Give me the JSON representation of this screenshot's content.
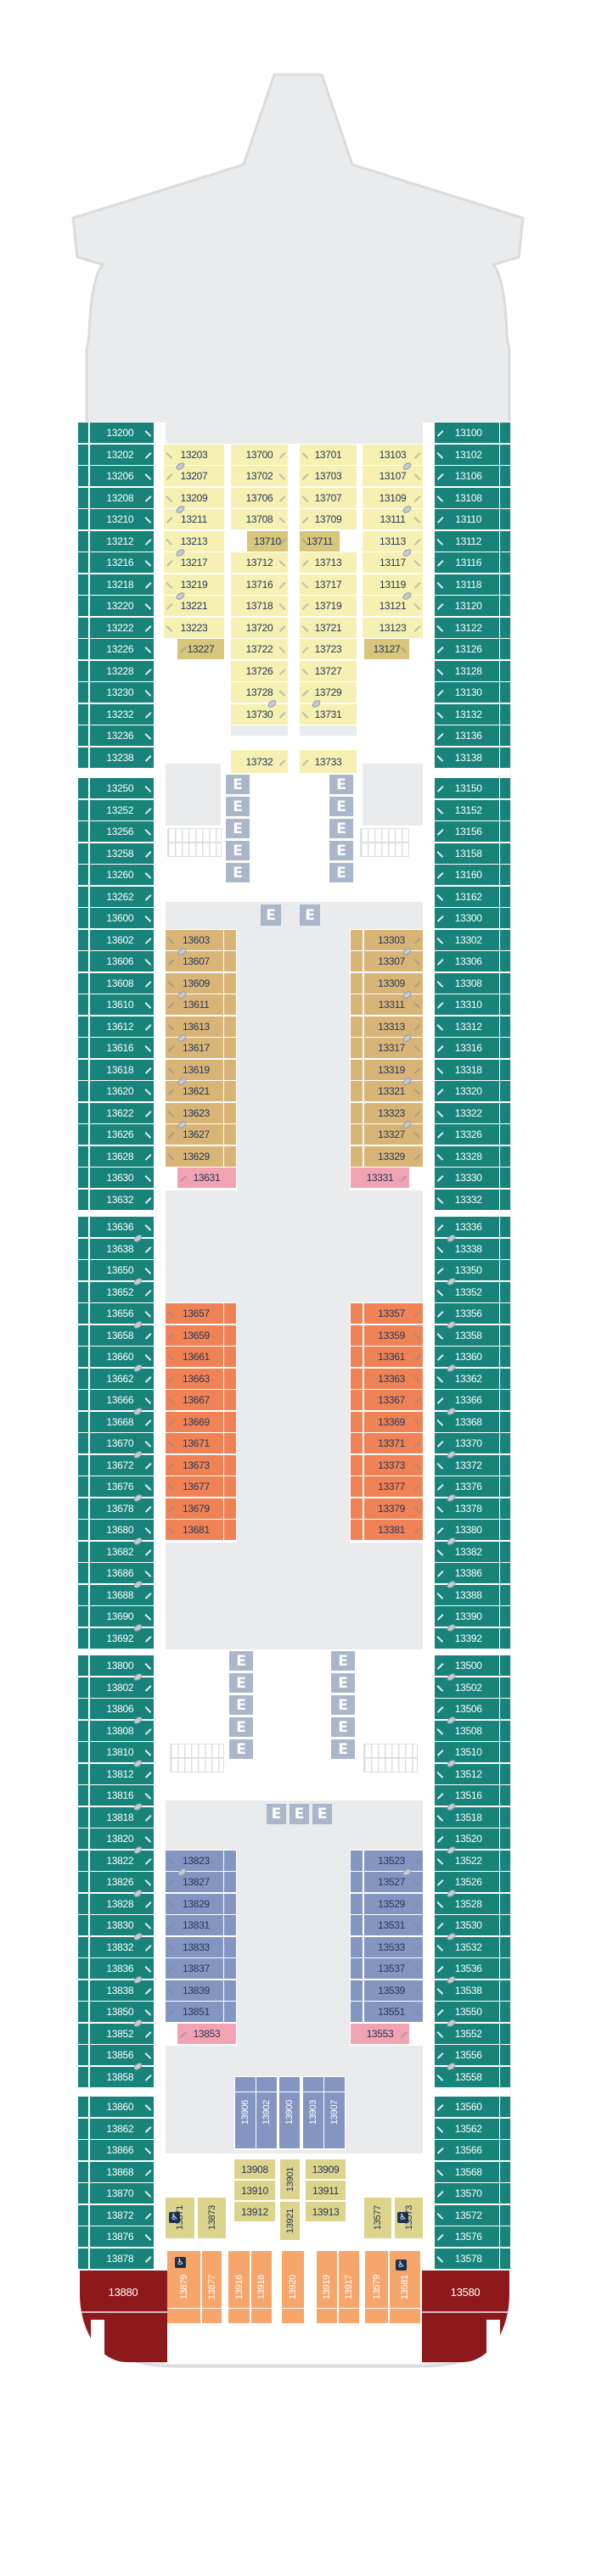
{
  "legend": {
    "elevator_label": "E",
    "accessible_icon": "♿",
    "connecting_rooms_icon": "slashed-oval"
  },
  "colors": {
    "teal": "#17837A",
    "yellow": "#F6F1B3",
    "gold": "#D8C67C",
    "tan": "#D8B577",
    "orange": "#F08356",
    "orange_vertical": "#F6A66B",
    "pink": "#F2A3B3",
    "periwinkle": "#8495C1",
    "khaki": "#DCD48C",
    "suite_red": "#8E191C",
    "elevator": "#AAB7CA",
    "hull": "#E9EBEC",
    "hull_border": "#D9DBDD",
    "number_dark": "#263656"
  },
  "teal_left_sections": [
    [
      "13200",
      "13202",
      "13206",
      "13208",
      "13210",
      "13212",
      "13216",
      "13218",
      "13220",
      "13222",
      "13226",
      "13228",
      "13230",
      "13232",
      "13236",
      "13238"
    ],
    [
      "13250",
      "13252",
      "13256",
      "13258",
      "13260",
      "13262",
      "13600",
      "13602",
      "13606",
      "13608",
      "13610",
      "13612",
      "13616",
      "13618",
      "13620",
      "13622",
      "13626",
      "13628",
      "13630",
      "13632"
    ],
    [
      "13636",
      "13638",
      "13650",
      "13652",
      "13656",
      "13658",
      "13660",
      "13662",
      "13666",
      "13668",
      "13670",
      "13672",
      "13676",
      "13678",
      "13680",
      "13682",
      "13686",
      "13688",
      "13690",
      "13692"
    ],
    [
      "13800",
      "13802",
      "13806",
      "13808",
      "13810",
      "13812",
      "13816",
      "13818",
      "13820",
      "13822",
      "13826",
      "13828",
      "13830",
      "13832",
      "13836",
      "13838",
      "13850",
      "13852",
      "13856",
      "13858"
    ],
    [
      "13860",
      "13862",
      "13866",
      "13868",
      "13870",
      "13872",
      "13876",
      "13878"
    ]
  ],
  "teal_right_sections": [
    [
      "13100",
      "13102",
      "13106",
      "13108",
      "13110",
      "13112",
      "13116",
      "13118",
      "13120",
      "13122",
      "13126",
      "13128",
      "13130",
      "13132",
      "13136",
      "13138"
    ],
    [
      "13150",
      "13152",
      "13156",
      "13158",
      "13160",
      "13162",
      "13300",
      "13302",
      "13306",
      "13308",
      "13310",
      "13312",
      "13316",
      "13318",
      "13320",
      "13322",
      "13326",
      "13328",
      "13330",
      "13332"
    ],
    [
      "13336",
      "13338",
      "13350",
      "13352",
      "13356",
      "13358",
      "13360",
      "13362",
      "13366",
      "13368",
      "13370",
      "13372",
      "13376",
      "13378",
      "13380",
      "13382",
      "13386",
      "13388",
      "13390",
      "13392"
    ],
    [
      "13500",
      "13502",
      "13506",
      "13508",
      "13510",
      "13512",
      "13516",
      "13518",
      "13520",
      "13522",
      "13526",
      "13528",
      "13530",
      "13532",
      "13536",
      "13538",
      "13550",
      "13552",
      "13556",
      "13558"
    ],
    [
      "13560",
      "13562",
      "13566",
      "13568",
      "13570",
      "13572",
      "13576",
      "13578"
    ]
  ],
  "forward": {
    "inner_left": [
      "13203",
      "13207",
      "13209",
      "13211",
      "13213",
      "13217",
      "13219",
      "13221",
      "13223",
      "13227"
    ],
    "center_left": [
      "13700",
      "13702",
      "13706",
      "13708",
      "13710",
      "13712",
      "13716",
      "13718",
      "13720",
      "13722",
      "13726",
      "13728",
      "13730"
    ],
    "center_right": [
      "13701",
      "13703",
      "13707",
      "13709",
      "13711",
      "13713",
      "13717",
      "13719",
      "13721",
      "13723",
      "13727",
      "13729",
      "13731"
    ],
    "inner_right": [
      "13103",
      "13107",
      "13109",
      "13111",
      "13113",
      "13117",
      "13119",
      "13121",
      "13123",
      "13127"
    ],
    "rear_pair": [
      "13732",
      "13733"
    ]
  },
  "mid_tan": {
    "left": [
      "13603",
      "13607",
      "13609",
      "13611",
      "13613",
      "13617",
      "13619",
      "13621",
      "13623",
      "13627",
      "13629"
    ],
    "right": [
      "13303",
      "13307",
      "13309",
      "13311",
      "13313",
      "13317",
      "13319",
      "13321",
      "13323",
      "13327",
      "13329"
    ],
    "pink_left": "13631",
    "pink_right": "13331"
  },
  "mid_orange": {
    "left": [
      "13657",
      "13659",
      "13661",
      "13663",
      "13667",
      "13669",
      "13671",
      "13673",
      "13677",
      "13679",
      "13681"
    ],
    "right": [
      "13357",
      "13359",
      "13361",
      "13363",
      "13367",
      "13369",
      "13371",
      "13373",
      "13377",
      "13379",
      "13381"
    ]
  },
  "aft_blue": {
    "left": [
      "13823",
      "13827",
      "13829",
      "13831",
      "13833",
      "13837",
      "13839",
      "13851"
    ],
    "right": [
      "13523",
      "13527",
      "13529",
      "13531",
      "13533",
      "13537",
      "13539",
      "13551"
    ],
    "pink_left": "13853",
    "pink_right": "13553"
  },
  "aft_cluster": {
    "vertical_blue": [
      "13906",
      "13902",
      "13900",
      "13903",
      "13907"
    ],
    "khaki_pair_left": [
      "13871",
      "13873"
    ],
    "khaki_col_left": [
      "13908",
      "13910",
      "13912"
    ],
    "khaki_center": [
      "13901",
      "13921"
    ],
    "khaki_col_right": [
      "13909",
      "13911",
      "13913"
    ],
    "khaki_pair_right": [
      "13577",
      "13573"
    ],
    "orange_row": [
      "13879",
      "13877",
      "13916",
      "13918",
      "13920",
      "13919",
      "13917",
      "13579",
      "13581"
    ],
    "suite_left": "13880",
    "suite_right": "13580"
  },
  "dark_gold_cabins": [
    "13710",
    "13711",
    "13227",
    "13127"
  ],
  "accessible_cabins": [
    "13871",
    "13573",
    "13879",
    "13581"
  ],
  "connecting_below": [
    "13203",
    "13209",
    "13213",
    "13219",
    "13103",
    "13109",
    "13113",
    "13119",
    "13728",
    "13729",
    "13603",
    "13609",
    "13613",
    "13619",
    "13623",
    "13303",
    "13309",
    "13313",
    "13319",
    "13323",
    "13823",
    "13523",
    "13636",
    "13650",
    "13656",
    "13660",
    "13666",
    "13670",
    "13676",
    "13680",
    "13686",
    "13690",
    "13800",
    "13806",
    "13810",
    "13816",
    "13820",
    "13826",
    "13830",
    "13836",
    "13850",
    "13856",
    "13336",
    "13350",
    "13356",
    "13360",
    "13366",
    "13370",
    "13376",
    "13380",
    "13386",
    "13390",
    "13500",
    "13506",
    "13510",
    "13516",
    "13520",
    "13526",
    "13530",
    "13536",
    "13550",
    "13556"
  ]
}
